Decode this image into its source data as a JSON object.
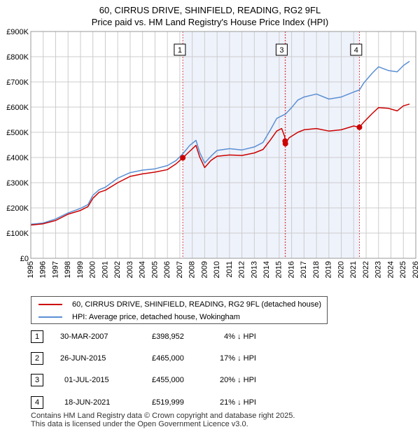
{
  "header": {
    "title_line1": "60, CIRRUS DRIVE, SHINFIELD, READING, RG2 9FL",
    "title_line2": "Price paid vs. HM Land Registry's House Price Index (HPI)"
  },
  "colors": {
    "property": "#cc0000",
    "hpi": "#5b8fd4",
    "shade": "#eef2fb",
    "marker_line": "#dd4444",
    "grid": "#cccccc"
  },
  "chart_data": {
    "type": "line",
    "ylim": [
      0,
      900000
    ],
    "xlim": [
      1995,
      2026
    ],
    "y_ticks": [
      {
        "value": 0,
        "label": "£0"
      },
      {
        "value": 100000,
        "label": "£100K"
      },
      {
        "value": 200000,
        "label": "£200K"
      },
      {
        "value": 300000,
        "label": "£300K"
      },
      {
        "value": 400000,
        "label": "£400K"
      },
      {
        "value": 500000,
        "label": "£500K"
      },
      {
        "value": 600000,
        "label": "£600K"
      },
      {
        "value": 700000,
        "label": "£700K"
      },
      {
        "value": 800000,
        "label": "£800K"
      },
      {
        "value": 900000,
        "label": "£900K"
      }
    ],
    "x_ticks": [
      "1995",
      "1996",
      "1997",
      "1998",
      "1999",
      "2000",
      "2001",
      "2002",
      "2003",
      "2004",
      "2005",
      "2006",
      "2007",
      "2008",
      "2009",
      "2010",
      "2011",
      "2012",
      "2013",
      "2014",
      "2015",
      "2016",
      "2017",
      "2018",
      "2019",
      "2020",
      "2021",
      "2022",
      "2023",
      "2024",
      "2025",
      "2026"
    ],
    "shaded_region": [
      2007.24,
      2021.46
    ],
    "series": [
      {
        "name": "60, CIRRUS DRIVE, SHINFIELD, READING, RG2 9FL (detached house)",
        "points": [
          [
            1995.0,
            132000
          ],
          [
            1996.0,
            137000
          ],
          [
            1997.0,
            150000
          ],
          [
            1998.0,
            175000
          ],
          [
            1999.0,
            190000
          ],
          [
            1999.6,
            205000
          ],
          [
            2000.0,
            238000
          ],
          [
            2000.5,
            262000
          ],
          [
            2001.0,
            270000
          ],
          [
            2002.0,
            300000
          ],
          [
            2003.0,
            325000
          ],
          [
            2004.0,
            335000
          ],
          [
            2005.0,
            342000
          ],
          [
            2006.0,
            352000
          ],
          [
            2006.7,
            375000
          ],
          [
            2007.24,
            398952
          ],
          [
            2007.8,
            425000
          ],
          [
            2008.3,
            448000
          ],
          [
            2008.6,
            402000
          ],
          [
            2009.0,
            360000
          ],
          [
            2009.5,
            388000
          ],
          [
            2010.0,
            405000
          ],
          [
            2011.0,
            410000
          ],
          [
            2012.0,
            408000
          ],
          [
            2013.0,
            418000
          ],
          [
            2013.7,
            432000
          ],
          [
            2014.3,
            470000
          ],
          [
            2014.8,
            505000
          ],
          [
            2015.2,
            515000
          ],
          [
            2015.45,
            482000
          ],
          [
            2015.485,
            465000
          ],
          [
            2015.5,
            455000
          ],
          [
            2015.8,
            478000
          ],
          [
            2016.5,
            500000
          ],
          [
            2017.0,
            510000
          ],
          [
            2018.0,
            515000
          ],
          [
            2019.0,
            505000
          ],
          [
            2020.0,
            510000
          ],
          [
            2021.0,
            525000
          ],
          [
            2021.46,
            519999
          ],
          [
            2021.8,
            540000
          ],
          [
            2022.5,
            575000
          ],
          [
            2023.0,
            598000
          ],
          [
            2023.8,
            595000
          ],
          [
            2024.5,
            585000
          ],
          [
            2025.0,
            605000
          ],
          [
            2025.5,
            612000
          ]
        ]
      },
      {
        "name": "HPI: Average price, detached house, Wokingham",
        "points": [
          [
            1995.0,
            135000
          ],
          [
            1996.0,
            140000
          ],
          [
            1997.0,
            156000
          ],
          [
            1998.0,
            180000
          ],
          [
            1999.0,
            198000
          ],
          [
            1999.6,
            213000
          ],
          [
            2000.0,
            250000
          ],
          [
            2000.5,
            272000
          ],
          [
            2001.0,
            282000
          ],
          [
            2002.0,
            318000
          ],
          [
            2003.0,
            340000
          ],
          [
            2004.0,
            350000
          ],
          [
            2005.0,
            355000
          ],
          [
            2006.0,
            368000
          ],
          [
            2006.7,
            388000
          ],
          [
            2007.24,
            415000
          ],
          [
            2007.8,
            448000
          ],
          [
            2008.3,
            468000
          ],
          [
            2008.6,
            420000
          ],
          [
            2009.0,
            378000
          ],
          [
            2009.5,
            405000
          ],
          [
            2010.0,
            428000
          ],
          [
            2011.0,
            435000
          ],
          [
            2012.0,
            430000
          ],
          [
            2013.0,
            442000
          ],
          [
            2013.7,
            460000
          ],
          [
            2014.3,
            510000
          ],
          [
            2014.8,
            555000
          ],
          [
            2015.2,
            565000
          ],
          [
            2015.5,
            572000
          ],
          [
            2016.0,
            598000
          ],
          [
            2016.5,
            628000
          ],
          [
            2017.0,
            640000
          ],
          [
            2018.0,
            652000
          ],
          [
            2019.0,
            632000
          ],
          [
            2020.0,
            640000
          ],
          [
            2021.0,
            660000
          ],
          [
            2021.46,
            668000
          ],
          [
            2021.8,
            695000
          ],
          [
            2022.5,
            735000
          ],
          [
            2023.0,
            760000
          ],
          [
            2023.8,
            745000
          ],
          [
            2024.5,
            740000
          ],
          [
            2025.0,
            765000
          ],
          [
            2025.5,
            782000
          ]
        ]
      }
    ],
    "sales": [
      {
        "id": "1",
        "x": 2007.24,
        "value": 398952
      },
      {
        "id": "2",
        "x": 2015.48,
        "value": 465000
      },
      {
        "id": "3",
        "x": 2015.5,
        "value": 455000
      },
      {
        "id": "4",
        "x": 2021.46,
        "value": 519999
      }
    ],
    "chart_labels": [
      {
        "id": "1",
        "x": 2007.0
      },
      {
        "id": "3",
        "x": 2015.2
      },
      {
        "id": "4",
        "x": 2021.2
      }
    ]
  },
  "legend": {
    "property_label": "60, CIRRUS DRIVE, SHINFIELD, READING, RG2 9FL (detached house)",
    "hpi_label": "HPI: Average price, detached house, Wokingham"
  },
  "sales_table": [
    {
      "id": "1",
      "date": "30-MAR-2007",
      "price": "£398,952",
      "diff": "4% ↓ HPI"
    },
    {
      "id": "2",
      "date": "26-JUN-2015",
      "price": "£465,000",
      "diff": "17% ↓ HPI"
    },
    {
      "id": "3",
      "date": "01-JUL-2015",
      "price": "£455,000",
      "diff": "20% ↓ HPI"
    },
    {
      "id": "4",
      "date": "18-JUN-2021",
      "price": "£519,999",
      "diff": "21% ↓ HPI"
    }
  ],
  "footer": {
    "line1": "Contains HM Land Registry data © Crown copyright and database right 2025.",
    "line2": "This data is licensed under the Open Government Licence v3.0."
  }
}
